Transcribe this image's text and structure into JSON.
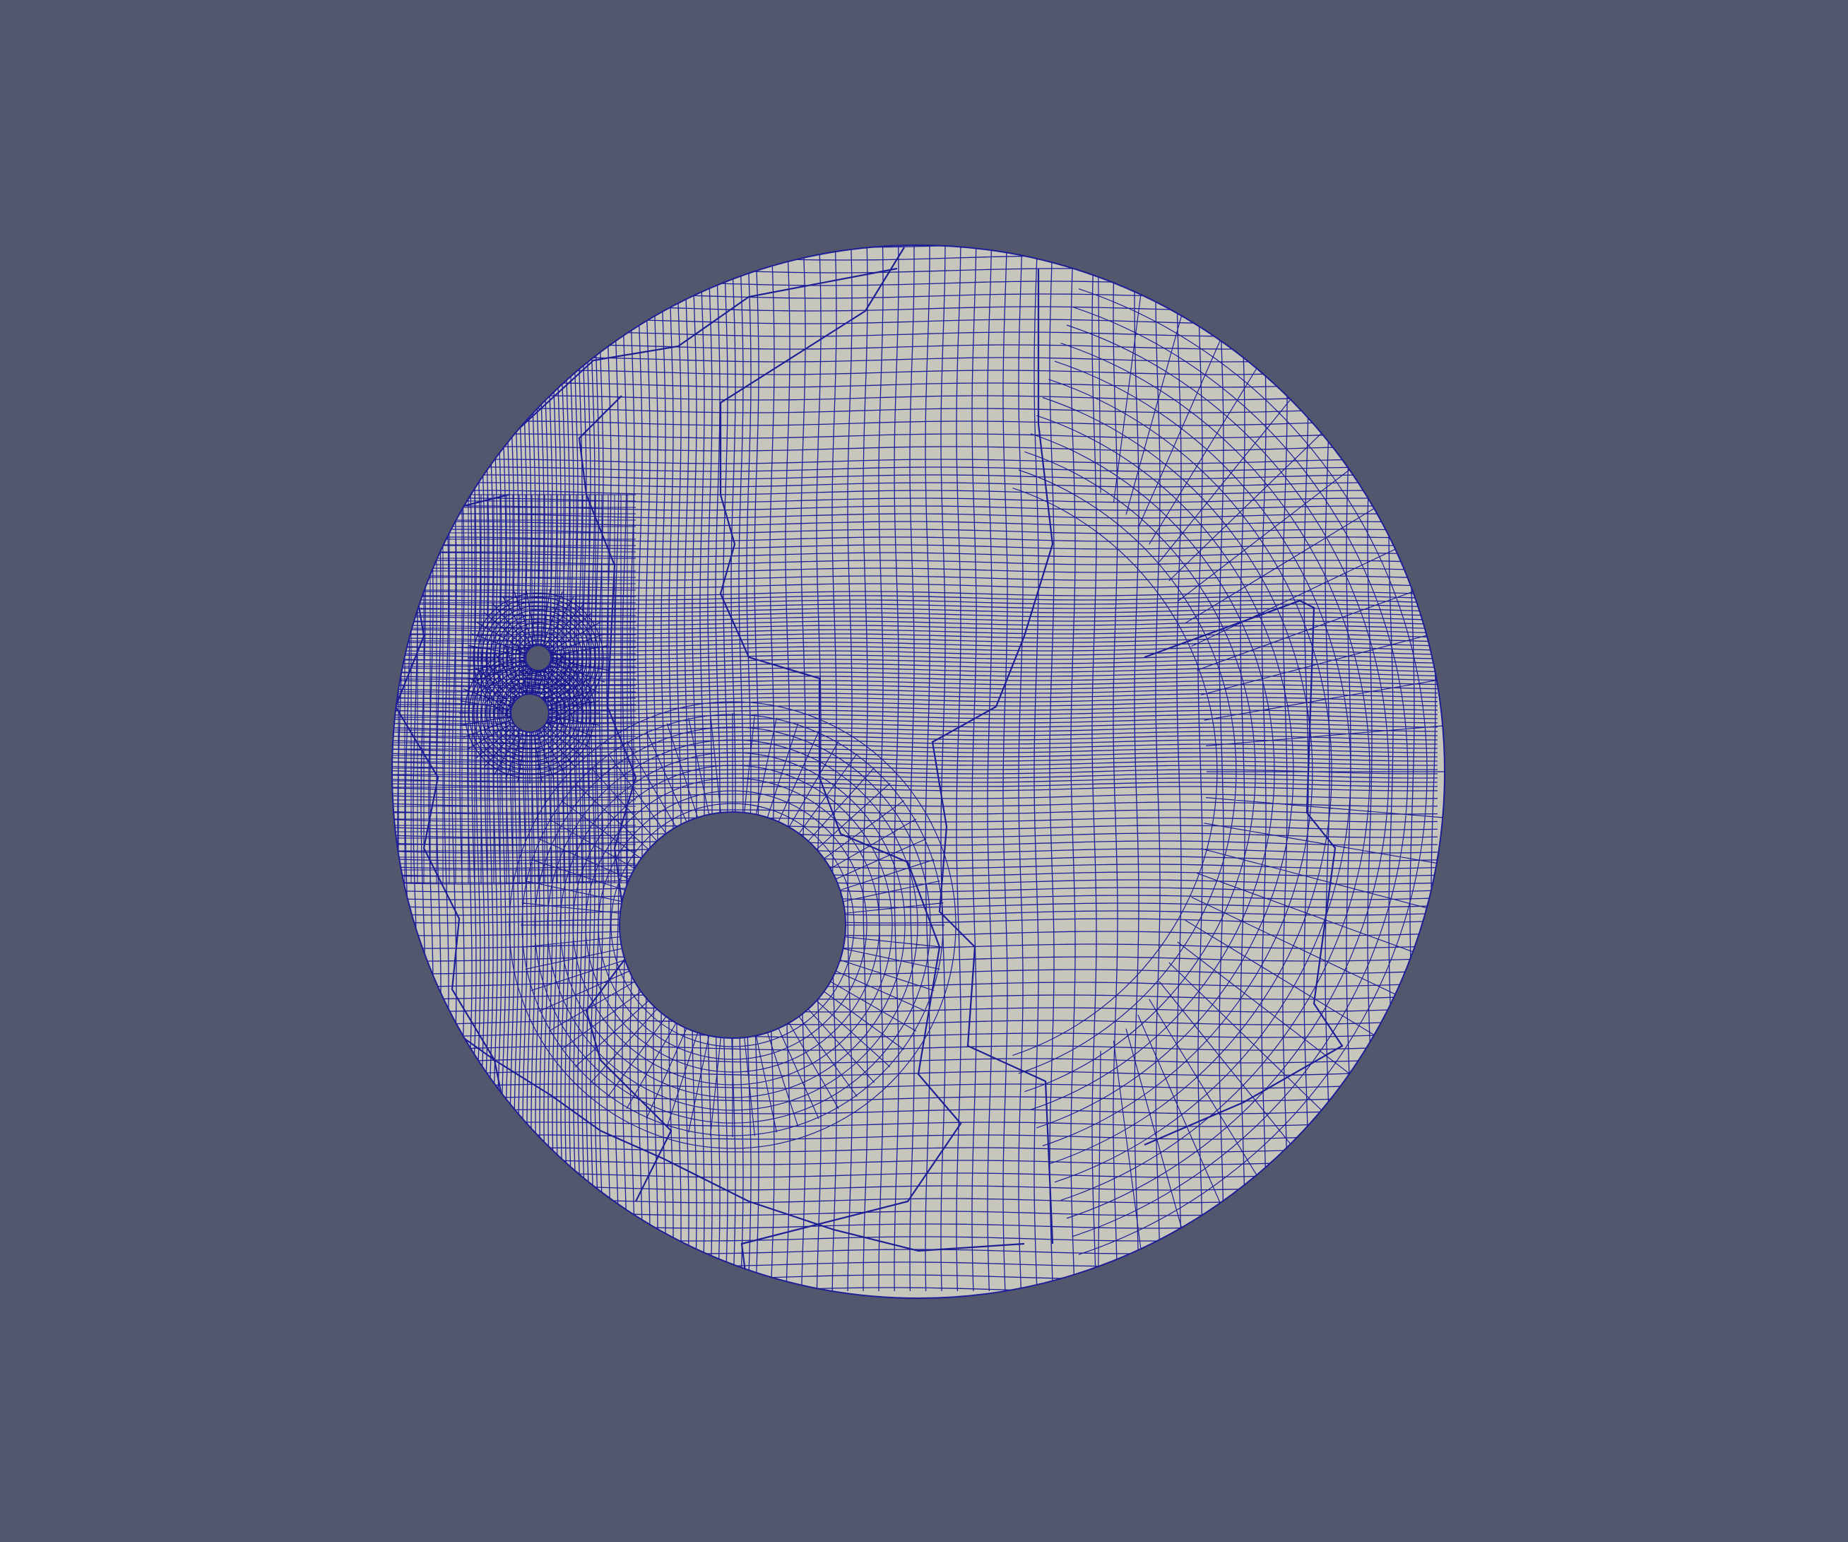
{
  "scene": {
    "background_color": "#52576e",
    "surface_color": "#c6c6bd",
    "edge_color": "#1e1e96",
    "dense_edge_color": "#14148c",
    "representation": "surface-with-edges"
  },
  "mesh": {
    "shape": "disk",
    "holes": [
      "large-hole",
      "small-hole-upper",
      "small-hole-lower"
    ],
    "refinement_region": "left-side-around-small-holes"
  }
}
